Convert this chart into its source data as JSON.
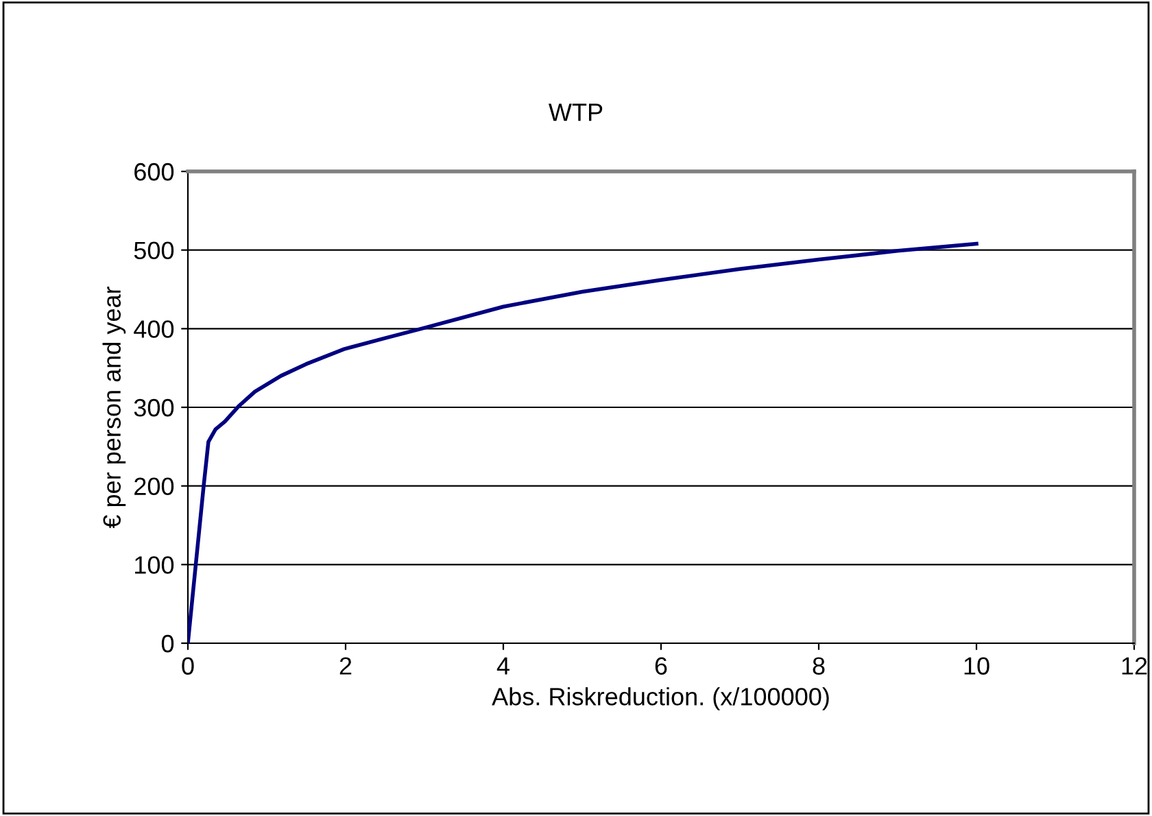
{
  "chart_data": {
    "type": "line",
    "title": "WTP",
    "xlabel": "Abs. Riskreduction. (x/100000)",
    "ylabel": "€ per person and year",
    "series": [
      {
        "color": "#000080",
        "x": [
          0,
          0.1,
          0.2,
          0.26,
          0.35,
          0.47,
          0.65,
          0.85,
          1.18,
          1.5,
          1.98,
          2.5,
          2.96,
          4,
          5,
          6,
          7,
          8,
          9,
          10
        ],
        "values": [
          0,
          100,
          200,
          256,
          272,
          282,
          302,
          320,
          340,
          355,
          374,
          388,
          400,
          428,
          447,
          462,
          476,
          488,
          499,
          508
        ]
      }
    ],
    "xlim": [
      0,
      12
    ],
    "xticks": [
      0,
      2,
      4,
      6,
      8,
      10,
      12
    ],
    "ylim": [
      0,
      600
    ],
    "yticks": [
      0,
      100,
      200,
      300,
      400,
      500,
      600
    ],
    "grid": "y",
    "legend": false,
    "marker": "none",
    "line_style": "solid"
  }
}
